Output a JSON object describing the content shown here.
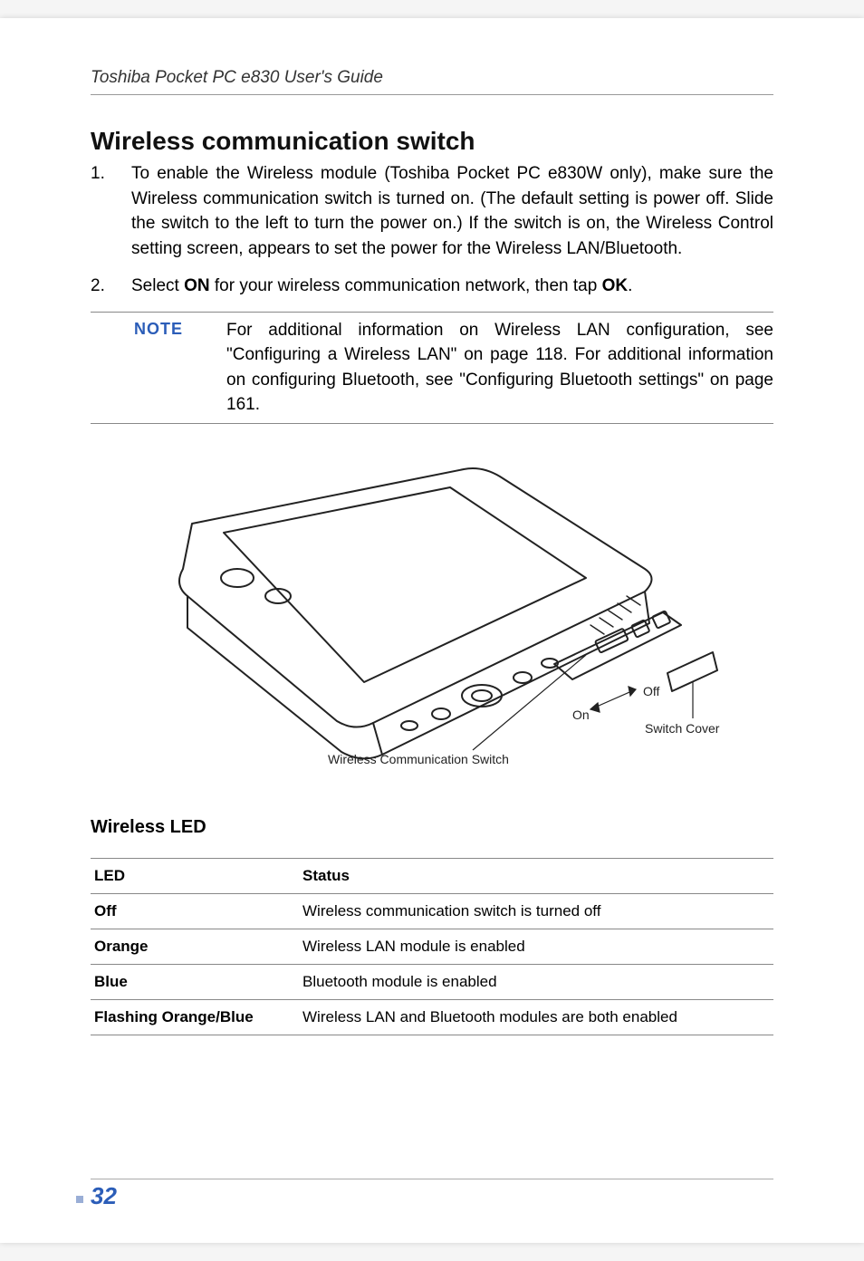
{
  "header": {
    "title": "Toshiba Pocket PC e830 User's Guide"
  },
  "h1": "Wireless communication switch",
  "items": [
    {
      "num": "1.",
      "html": "To enable the Wireless module (Toshiba Pocket PC e830W only), make sure the Wireless communication switch is turned on. (The default setting is power off. Slide the switch to the left to turn the power on.) If the switch is on, the Wireless Control setting screen, appears to set the power for the Wireless LAN/Bluetooth."
    },
    {
      "num": "2.",
      "html": "Select <b>ON</b> for your wireless communication network, then tap <b>OK</b>."
    }
  ],
  "note": {
    "label": "NOTE",
    "text": "For additional information on Wireless LAN configuration, see \"Configuring a Wireless LAN\" on page 118. For additional information on configuring Bluetooth, see \"Configuring Bluetooth settings\" on page 161."
  },
  "figure": {
    "caption": "Wireless Communication Switch",
    "on_label": "On",
    "off_label": "Off",
    "switch_cover": "Switch Cover"
  },
  "h2": "Wireless LED",
  "table": {
    "columns": [
      "LED",
      "Status"
    ],
    "rows": [
      [
        "Off",
        "Wireless communication switch is turned off"
      ],
      [
        "Orange",
        "Wireless LAN module is enabled"
      ],
      [
        "Blue",
        "Bluetooth module is enabled"
      ],
      [
        "Flashing Orange/Blue",
        "Wireless LAN and Bluetooth modules are both enabled"
      ]
    ]
  },
  "page_number": "32",
  "colors": {
    "accent": "#2b5db8",
    "rule": "#888888",
    "text": "#222222"
  }
}
